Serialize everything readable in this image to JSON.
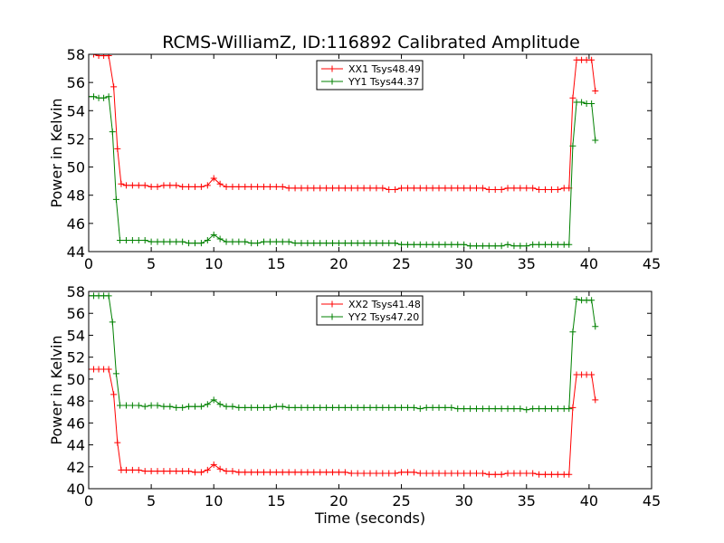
{
  "figure": {
    "title": "RCMS-WilliamZ, ID:116892 Calibrated Amplitude"
  },
  "chart_data": [
    {
      "type": "line",
      "title": "RCMS-WilliamZ, ID:116892 Calibrated Amplitude",
      "xlabel": "",
      "ylabel": "Power in Kelvin",
      "xlim": [
        0,
        45
      ],
      "ylim": [
        44,
        58
      ],
      "xticks": [
        0,
        5,
        10,
        15,
        20,
        25,
        30,
        35,
        40,
        45
      ],
      "yticks": [
        44,
        46,
        48,
        50,
        52,
        54,
        56,
        58
      ],
      "grid": false,
      "legend_position": "top-center",
      "marker": "+",
      "series": [
        {
          "name": "XX1 Tsys48.49",
          "color": "#ff0000",
          "x": [
            0.0,
            0.4,
            0.8,
            1.2,
            1.6,
            2.0,
            2.3,
            2.6,
            3.0,
            3.5,
            4.0,
            4.5,
            5.0,
            5.5,
            6.0,
            6.5,
            7.0,
            7.5,
            8.0,
            8.5,
            9.0,
            9.5,
            10.0,
            10.5,
            11.0,
            11.5,
            12.0,
            12.5,
            13.0,
            13.5,
            14.0,
            14.5,
            15.0,
            15.5,
            16.0,
            16.5,
            17.0,
            17.5,
            18.0,
            18.5,
            19.0,
            19.5,
            20.0,
            20.5,
            21.0,
            21.5,
            22.0,
            22.5,
            23.0,
            23.5,
            24.0,
            24.5,
            25.0,
            25.5,
            26.0,
            26.5,
            27.0,
            27.5,
            28.0,
            28.5,
            29.0,
            29.5,
            30.0,
            30.5,
            31.0,
            31.5,
            32.0,
            32.5,
            33.0,
            33.5,
            34.0,
            34.5,
            35.0,
            35.5,
            36.0,
            36.5,
            37.0,
            37.5,
            38.0,
            38.4,
            38.7,
            39.0,
            39.4,
            39.8,
            40.2,
            40.5
          ],
          "values": [
            58.0,
            58.0,
            57.9,
            57.9,
            57.9,
            55.7,
            51.3,
            48.8,
            48.7,
            48.7,
            48.7,
            48.7,
            48.6,
            48.6,
            48.7,
            48.7,
            48.7,
            48.6,
            48.6,
            48.6,
            48.6,
            48.7,
            49.2,
            48.8,
            48.6,
            48.6,
            48.6,
            48.6,
            48.6,
            48.6,
            48.6,
            48.6,
            48.6,
            48.6,
            48.5,
            48.5,
            48.5,
            48.5,
            48.5,
            48.5,
            48.5,
            48.5,
            48.5,
            48.5,
            48.5,
            48.5,
            48.5,
            48.5,
            48.5,
            48.5,
            48.4,
            48.4,
            48.5,
            48.5,
            48.5,
            48.5,
            48.5,
            48.5,
            48.5,
            48.5,
            48.5,
            48.5,
            48.5,
            48.5,
            48.5,
            48.5,
            48.4,
            48.4,
            48.4,
            48.5,
            48.5,
            48.5,
            48.5,
            48.5,
            48.4,
            48.4,
            48.4,
            48.4,
            48.5,
            48.5,
            54.9,
            57.6,
            57.6,
            57.6,
            57.6,
            55.4
          ]
        },
        {
          "name": "YY1 Tsys44.37",
          "color": "#008000",
          "x": [
            0.0,
            0.4,
            0.8,
            1.2,
            1.6,
            1.9,
            2.2,
            2.5,
            3.0,
            3.5,
            4.0,
            4.5,
            5.0,
            5.5,
            6.0,
            6.5,
            7.0,
            7.5,
            8.0,
            8.5,
            9.0,
            9.5,
            10.0,
            10.5,
            11.0,
            11.5,
            12.0,
            12.5,
            13.0,
            13.5,
            14.0,
            14.5,
            15.0,
            15.5,
            16.0,
            16.5,
            17.0,
            17.5,
            18.0,
            18.5,
            19.0,
            19.5,
            20.0,
            20.5,
            21.0,
            21.5,
            22.0,
            22.5,
            23.0,
            23.5,
            24.0,
            24.5,
            25.0,
            25.5,
            26.0,
            26.5,
            27.0,
            27.5,
            28.0,
            28.5,
            29.0,
            29.5,
            30.0,
            30.5,
            31.0,
            31.5,
            32.0,
            32.5,
            33.0,
            33.5,
            34.0,
            34.5,
            35.0,
            35.5,
            36.0,
            36.5,
            37.0,
            37.5,
            38.0,
            38.4,
            38.7,
            39.0,
            39.4,
            39.8,
            40.2,
            40.5
          ],
          "values": [
            55.0,
            55.0,
            54.9,
            54.9,
            55.0,
            52.5,
            47.7,
            44.8,
            44.8,
            44.8,
            44.8,
            44.8,
            44.7,
            44.7,
            44.7,
            44.7,
            44.7,
            44.7,
            44.6,
            44.6,
            44.6,
            44.8,
            45.2,
            44.9,
            44.7,
            44.7,
            44.7,
            44.7,
            44.6,
            44.6,
            44.7,
            44.7,
            44.7,
            44.7,
            44.7,
            44.6,
            44.6,
            44.6,
            44.6,
            44.6,
            44.6,
            44.6,
            44.6,
            44.6,
            44.6,
            44.6,
            44.6,
            44.6,
            44.6,
            44.6,
            44.6,
            44.6,
            44.5,
            44.5,
            44.5,
            44.5,
            44.5,
            44.5,
            44.5,
            44.5,
            44.5,
            44.5,
            44.5,
            44.4,
            44.4,
            44.4,
            44.4,
            44.4,
            44.4,
            44.5,
            44.4,
            44.4,
            44.4,
            44.5,
            44.5,
            44.5,
            44.5,
            44.5,
            44.5,
            44.5,
            51.5,
            54.6,
            54.6,
            54.5,
            54.5,
            51.9
          ]
        }
      ]
    },
    {
      "type": "line",
      "title": "",
      "xlabel": "Time (seconds)",
      "ylabel": "Power in Kelvin",
      "xlim": [
        0,
        45
      ],
      "ylim": [
        40,
        58
      ],
      "xticks": [
        0,
        5,
        10,
        15,
        20,
        25,
        30,
        35,
        40,
        45
      ],
      "yticks": [
        40,
        42,
        44,
        46,
        48,
        50,
        52,
        54,
        56,
        58
      ],
      "grid": false,
      "legend_position": "top-center",
      "marker": "+",
      "series": [
        {
          "name": "XX2 Tsys41.48",
          "color": "#ff0000",
          "x": [
            0.0,
            0.4,
            0.8,
            1.2,
            1.6,
            2.0,
            2.3,
            2.6,
            3.0,
            3.5,
            4.0,
            4.5,
            5.0,
            5.5,
            6.0,
            6.5,
            7.0,
            7.5,
            8.0,
            8.5,
            9.0,
            9.5,
            10.0,
            10.5,
            11.0,
            11.5,
            12.0,
            12.5,
            13.0,
            13.5,
            14.0,
            14.5,
            15.0,
            15.5,
            16.0,
            16.5,
            17.0,
            17.5,
            18.0,
            18.5,
            19.0,
            19.5,
            20.0,
            20.5,
            21.0,
            21.5,
            22.0,
            22.5,
            23.0,
            23.5,
            24.0,
            24.5,
            25.0,
            25.5,
            26.0,
            26.5,
            27.0,
            27.5,
            28.0,
            28.5,
            29.0,
            29.5,
            30.0,
            30.5,
            31.0,
            31.5,
            32.0,
            32.5,
            33.0,
            33.5,
            34.0,
            34.5,
            35.0,
            35.5,
            36.0,
            36.5,
            37.0,
            37.5,
            38.0,
            38.4,
            38.7,
            39.0,
            39.4,
            39.8,
            40.2,
            40.5
          ],
          "values": [
            50.9,
            50.9,
            50.9,
            50.9,
            50.9,
            48.6,
            44.2,
            41.7,
            41.7,
            41.7,
            41.7,
            41.6,
            41.6,
            41.6,
            41.6,
            41.6,
            41.6,
            41.6,
            41.6,
            41.5,
            41.5,
            41.7,
            42.2,
            41.8,
            41.6,
            41.6,
            41.5,
            41.5,
            41.5,
            41.5,
            41.5,
            41.5,
            41.5,
            41.5,
            41.5,
            41.5,
            41.5,
            41.5,
            41.5,
            41.5,
            41.5,
            41.5,
            41.5,
            41.5,
            41.4,
            41.4,
            41.4,
            41.4,
            41.4,
            41.4,
            41.4,
            41.4,
            41.5,
            41.5,
            41.5,
            41.4,
            41.4,
            41.4,
            41.4,
            41.4,
            41.4,
            41.4,
            41.4,
            41.4,
            41.4,
            41.4,
            41.3,
            41.3,
            41.3,
            41.4,
            41.4,
            41.4,
            41.4,
            41.4,
            41.3,
            41.3,
            41.3,
            41.3,
            41.3,
            41.3,
            47.4,
            50.4,
            50.4,
            50.4,
            50.4,
            48.1
          ]
        },
        {
          "name": "YY2 Tsys47.20",
          "color": "#008000",
          "x": [
            0.0,
            0.4,
            0.8,
            1.2,
            1.6,
            1.9,
            2.2,
            2.5,
            3.0,
            3.5,
            4.0,
            4.5,
            5.0,
            5.5,
            6.0,
            6.5,
            7.0,
            7.5,
            8.0,
            8.5,
            9.0,
            9.5,
            10.0,
            10.5,
            11.0,
            11.5,
            12.0,
            12.5,
            13.0,
            13.5,
            14.0,
            14.5,
            15.0,
            15.5,
            16.0,
            16.5,
            17.0,
            17.5,
            18.0,
            18.5,
            19.0,
            19.5,
            20.0,
            20.5,
            21.0,
            21.5,
            22.0,
            22.5,
            23.0,
            23.5,
            24.0,
            24.5,
            25.0,
            25.5,
            26.0,
            26.5,
            27.0,
            27.5,
            28.0,
            28.5,
            29.0,
            29.5,
            30.0,
            30.5,
            31.0,
            31.5,
            32.0,
            32.5,
            33.0,
            33.5,
            34.0,
            34.5,
            35.0,
            35.5,
            36.0,
            36.5,
            37.0,
            37.5,
            38.0,
            38.4,
            38.7,
            39.0,
            39.4,
            39.8,
            40.2,
            40.5
          ],
          "values": [
            57.6,
            57.6,
            57.6,
            57.6,
            57.6,
            55.2,
            50.5,
            47.6,
            47.6,
            47.6,
            47.6,
            47.5,
            47.6,
            47.6,
            47.5,
            47.5,
            47.4,
            47.4,
            47.5,
            47.5,
            47.5,
            47.7,
            48.1,
            47.7,
            47.5,
            47.5,
            47.4,
            47.4,
            47.4,
            47.4,
            47.4,
            47.4,
            47.5,
            47.5,
            47.4,
            47.4,
            47.4,
            47.4,
            47.4,
            47.4,
            47.4,
            47.4,
            47.4,
            47.4,
            47.4,
            47.4,
            47.4,
            47.4,
            47.4,
            47.4,
            47.4,
            47.4,
            47.4,
            47.4,
            47.4,
            47.3,
            47.4,
            47.4,
            47.4,
            47.4,
            47.4,
            47.3,
            47.3,
            47.3,
            47.3,
            47.3,
            47.3,
            47.3,
            47.3,
            47.3,
            47.3,
            47.3,
            47.2,
            47.3,
            47.3,
            47.3,
            47.3,
            47.3,
            47.3,
            47.3,
            54.3,
            57.3,
            57.2,
            57.2,
            57.2,
            54.8
          ]
        }
      ]
    }
  ]
}
